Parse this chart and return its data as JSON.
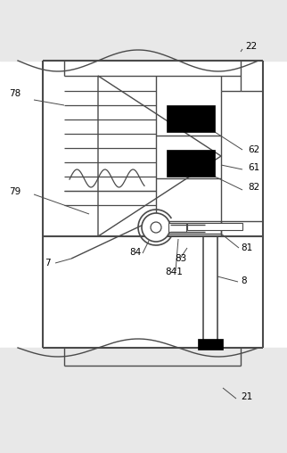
{
  "bg_color": "#e8e8e8",
  "line_color": "#4a4a4a",
  "black": "#000000",
  "white": "#ffffff",
  "figsize": [
    3.22,
    5.08
  ],
  "dpi": 100
}
